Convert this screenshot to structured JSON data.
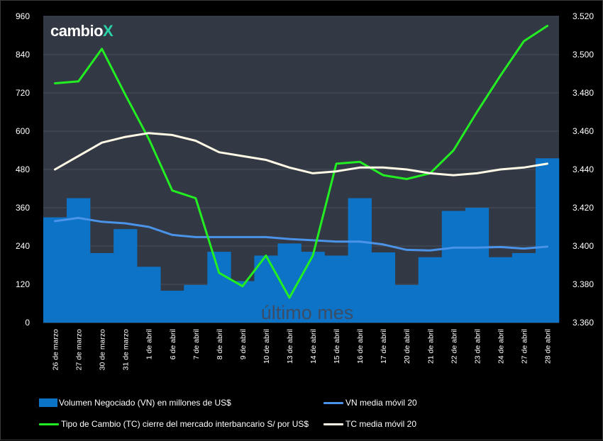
{
  "logo": {
    "text": "cambio",
    "mark": "X"
  },
  "watermark": "último mes",
  "colors": {
    "plot_bg": "#323844",
    "bars": "#0c73c6",
    "vn_ma": "#4a93e8",
    "tc": "#22ee22",
    "tc_ma": "#fff9e6",
    "grid": "#475060"
  },
  "chart_data": {
    "type": "bar",
    "categories": [
      "26 de marzo",
      "27 de marzo",
      "30 de marzo",
      "31 de marzo",
      "1 de abril",
      "6 de abril",
      "7 de abril",
      "8 de abril",
      "9 de abril",
      "10 de abril",
      "13 de abril",
      "14 de abril",
      "15 de abril",
      "16 de abril",
      "17 de abril",
      "20 de abril",
      "21 de abril",
      "22 de abril",
      "23 de abril",
      "24 de abril",
      "27 de abril",
      "28 de abril"
    ],
    "y_left": {
      "min": 0,
      "max": 960,
      "ticks": [
        0,
        120,
        240,
        360,
        480,
        600,
        720,
        840,
        960
      ]
    },
    "y_right": {
      "min": 3.36,
      "max": 3.52,
      "ticks": [
        "3.360",
        "3.380",
        "3.400",
        "3.420",
        "3.440",
        "3.460",
        "3.480",
        "3.500",
        "3.520"
      ]
    },
    "grid": true,
    "legend_position": "bottom",
    "series": [
      {
        "name": "Volumen Negociado (VN) en millones de US$",
        "type": "bar",
        "axis": "left",
        "values": [
          330,
          390,
          218,
          293,
          175,
          100,
          118,
          222,
          130,
          210,
          248,
          222,
          210,
          390,
          220,
          118,
          205,
          350,
          360,
          205,
          218,
          515
        ]
      },
      {
        "name": "VN media móvil 20",
        "type": "line",
        "axis": "left",
        "values": [
          318,
          328,
          316,
          311,
          300,
          275,
          268,
          268,
          268,
          268,
          262,
          258,
          254,
          254,
          245,
          228,
          226,
          235,
          235,
          237,
          232,
          238
        ]
      },
      {
        "name": "Tipo de Cambio (TC) cierre del mercado interbancario S/ por US$",
        "type": "line",
        "axis": "right",
        "values": [
          3.485,
          3.486,
          3.503,
          3.479,
          3.456,
          3.429,
          3.425,
          3.386,
          3.379,
          3.395,
          3.373,
          3.395,
          3.443,
          3.444,
          3.437,
          3.435,
          3.438,
          3.45,
          3.47,
          3.489,
          3.507,
          3.515
        ]
      },
      {
        "name": "TC media móvil 20",
        "type": "line",
        "axis": "right",
        "values": [
          3.44,
          3.447,
          3.454,
          3.457,
          3.459,
          3.458,
          3.455,
          3.449,
          3.447,
          3.445,
          3.441,
          3.438,
          3.439,
          3.441,
          3.441,
          3.44,
          3.438,
          3.437,
          3.438,
          3.44,
          3.441,
          3.443
        ]
      }
    ]
  },
  "legend": {
    "bars": "Volumen Negociado (VN) en millones de US$",
    "vn_ma": "VN media móvil 20",
    "tc": "Tipo de Cambio (TC) cierre del mercado interbancario S/ por US$",
    "tc_ma": "TC media móvil 20"
  }
}
